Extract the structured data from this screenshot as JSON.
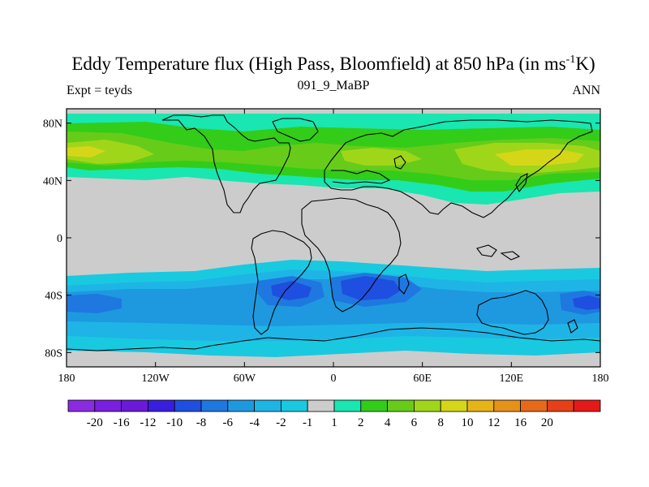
{
  "title": {
    "main": "Eddy Temperature flux (High Pass, Bloomfield) at 850 hPa (in ms",
    "exponent": "-1",
    "end": "K)"
  },
  "subtitle_left": "Expt = teyds",
  "subtitle_center": "091_9_MaBP",
  "subtitle_right": "ANN",
  "chart_data": {
    "type": "heatmap",
    "projection": "cylindrical-equidistant",
    "lon_range": [
      -180,
      180
    ],
    "lat_range": [
      -90,
      90
    ],
    "x_ticks": [
      {
        "value": -180,
        "label": "180"
      },
      {
        "value": -120,
        "label": "120W"
      },
      {
        "value": -60,
        "label": "60W"
      },
      {
        "value": 0,
        "label": "0"
      },
      {
        "value": 60,
        "label": "60E"
      },
      {
        "value": 120,
        "label": "120E"
      },
      {
        "value": 180,
        "label": "180"
      }
    ],
    "y_ticks": [
      {
        "value": 80,
        "label": "80N"
      },
      {
        "value": 40,
        "label": "40N"
      },
      {
        "value": 0,
        "label": "0"
      },
      {
        "value": -40,
        "label": "40S"
      },
      {
        "value": -80,
        "label": "80S"
      }
    ],
    "missing_color": "#cccccc",
    "colorbar": {
      "colors": [
        "#8a2be2",
        "#7a1fe0",
        "#6a1ad6",
        "#3a1ee0",
        "#1e4fe0",
        "#1e78e0",
        "#1e99e0",
        "#1eb5e6",
        "#19c9e0",
        "#cccccc",
        "#19e6b0",
        "#33cc19",
        "#66cc19",
        "#a0d619",
        "#d6d619",
        "#e6b419",
        "#e69119",
        "#e66a19",
        "#e64019",
        "#e61919"
      ],
      "labels": [
        "-20",
        "-16",
        "-12",
        "-10",
        "-8",
        "-6",
        "-4",
        "-2",
        "-1",
        "1",
        "2",
        "4",
        "6",
        "8",
        "10",
        "12",
        "16",
        "20"
      ]
    },
    "anomaly_zones": [
      {
        "hemisphere": "north",
        "lat_range": [
          25,
          85
        ],
        "lon_range": [
          -180,
          180
        ],
        "value_range": [
          1,
          8
        ]
      },
      {
        "hemisphere": "south",
        "lat_range": [
          -82,
          -28
        ],
        "lon_range": [
          -180,
          180
        ],
        "value_range": [
          -10,
          -1
        ]
      }
    ],
    "coastline_color": "#000000"
  }
}
